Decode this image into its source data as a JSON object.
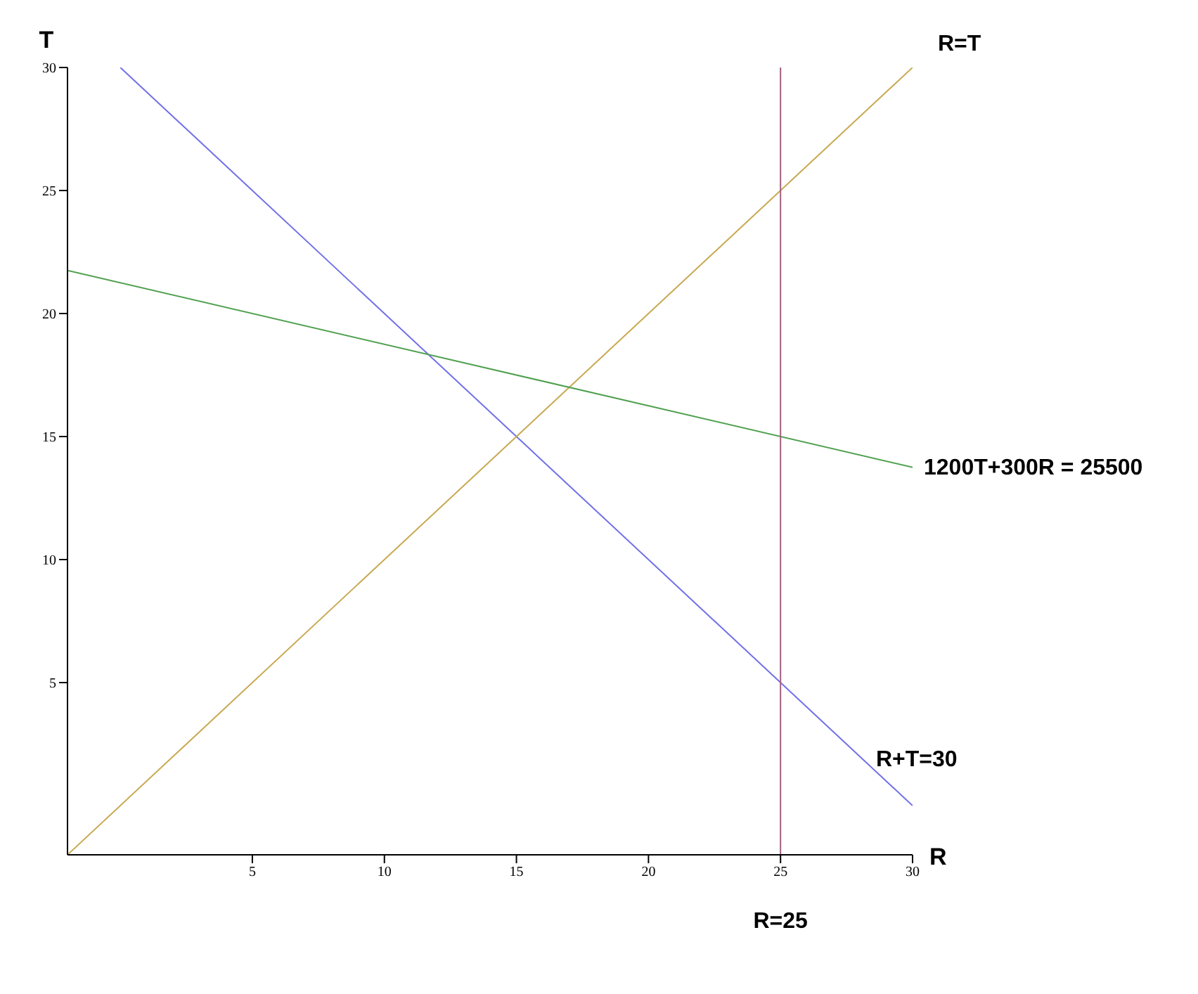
{
  "chart_data": {
    "type": "line",
    "xlabel": "R",
    "ylabel": "T",
    "xlim": [
      -2,
      30
    ],
    "ylim": [
      -2,
      30
    ],
    "xticks": [
      5,
      10,
      15,
      20,
      25,
      30
    ],
    "yticks": [
      5,
      10,
      15,
      20,
      25,
      30
    ],
    "grid": false,
    "legend": false,
    "marker": "none",
    "line_style": "solid",
    "series": [
      {
        "name": "R+T=30",
        "color": "#7070e8",
        "x": [
          0,
          30
        ],
        "values": [
          30,
          0
        ]
      },
      {
        "name": "R=T",
        "color": "#c8a850",
        "x": [
          -2,
          30
        ],
        "values": [
          -2,
          30
        ]
      },
      {
        "name": "1200T+300R = 25500",
        "color": "#50a050",
        "x": [
          -2,
          30
        ],
        "values": [
          21.75,
          13.75
        ]
      },
      {
        "name": "R=25",
        "color": "#a06080",
        "x": [
          25,
          25
        ],
        "values": [
          -2,
          30
        ]
      }
    ]
  }
}
